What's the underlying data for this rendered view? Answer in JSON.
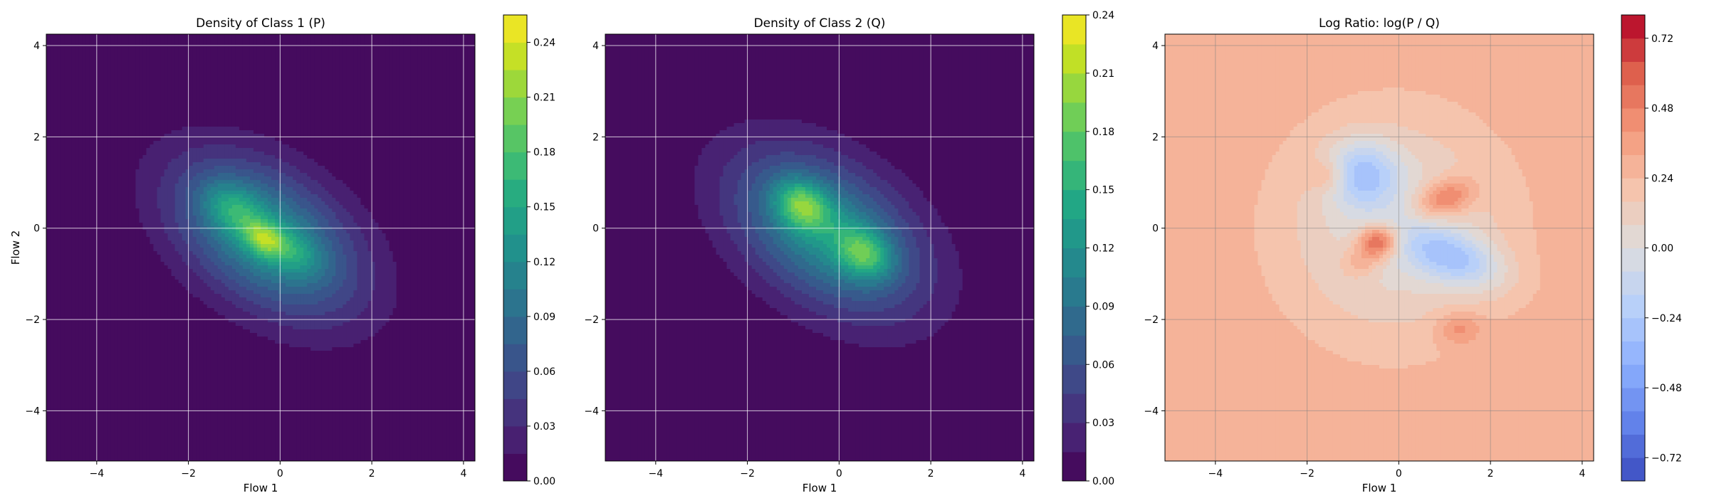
{
  "chart_data": [
    {
      "type": "heatmap",
      "title": "Density of Class 1 (P)",
      "xlabel": "Flow 1",
      "ylabel": "Flow 2",
      "xlim": [
        -5.1,
        4.25
      ],
      "ylim": [
        -5.1,
        4.25
      ],
      "xticks": [
        "−4",
        "−2",
        "0",
        "2",
        "4"
      ],
      "yticks": [
        "−4",
        "−2",
        "0",
        "2",
        "4"
      ],
      "grid": true,
      "colormap": "viridis",
      "colorbar": {
        "min": 0,
        "max": 0.255,
        "levels": 17,
        "ticks": [
          "0.00",
          "0.03",
          "0.06",
          "0.09",
          "0.12",
          "0.15",
          "0.18",
          "0.21",
          "0.24"
        ],
        "tick_values": [
          0,
          0.03,
          0.06,
          0.09,
          0.12,
          0.15,
          0.18,
          0.21,
          0.24
        ]
      },
      "blobs": [
        {
          "x": -0.3,
          "y": -0.2,
          "sx": 1.55,
          "sy": 0.95,
          "rot": -35,
          "peak": 0.13
        },
        {
          "x": -0.35,
          "y": -0.25,
          "sx": 0.35,
          "sy": 0.25,
          "rot": -35,
          "peak": 0.09
        },
        {
          "x": -1.05,
          "y": 0.45,
          "sx": 0.5,
          "sy": 0.35,
          "rot": -35,
          "peak": 0.06
        },
        {
          "x": 0.35,
          "y": -0.55,
          "sx": 0.45,
          "sy": 0.3,
          "rot": -35,
          "peak": 0.04
        }
      ]
    },
    {
      "type": "heatmap",
      "title": "Density of Class 2 (Q)",
      "xlabel": "Flow 1",
      "ylabel": "",
      "xlim": [
        -5.1,
        4.25
      ],
      "ylim": [
        -5.1,
        4.25
      ],
      "xticks": [
        "−4",
        "−2",
        "0",
        "2",
        "4"
      ],
      "yticks": [
        "−4",
        "−2",
        "0",
        "2",
        "4"
      ],
      "grid": true,
      "colormap": "viridis",
      "colorbar": {
        "min": 0,
        "max": 0.24,
        "levels": 16,
        "ticks": [
          "0.00",
          "0.03",
          "0.06",
          "0.09",
          "0.12",
          "0.15",
          "0.18",
          "0.21",
          "0.24"
        ],
        "tick_values": [
          0,
          0.03,
          0.06,
          0.09,
          0.12,
          0.15,
          0.18,
          0.21,
          0.24
        ]
      },
      "blobs": [
        {
          "x": -0.25,
          "y": -0.1,
          "sx": 1.6,
          "sy": 1.0,
          "rot": -35,
          "peak": 0.12
        },
        {
          "x": -0.8,
          "y": 0.5,
          "sx": 0.45,
          "sy": 0.35,
          "rot": -35,
          "peak": 0.1
        },
        {
          "x": 0.55,
          "y": -0.55,
          "sx": 0.45,
          "sy": 0.35,
          "rot": -35,
          "peak": 0.09
        }
      ]
    },
    {
      "type": "heatmap",
      "title": "Log Ratio: log(P / Q)",
      "xlabel": "Flow 1",
      "ylabel": "",
      "xlim": [
        -5.1,
        4.25
      ],
      "ylim": [
        -5.1,
        4.25
      ],
      "xticks": [
        "−4",
        "−2",
        "0",
        "2",
        "4"
      ],
      "yticks": [
        "−4",
        "−2",
        "0",
        "2",
        "4"
      ],
      "grid": true,
      "colormap": "coolwarm",
      "colorbar": {
        "min": -0.8,
        "max": 0.8,
        "levels": 20,
        "ticks": [
          "−0.72",
          "−0.48",
          "−0.24",
          "0.00",
          "0.24",
          "0.48",
          "0.72"
        ],
        "tick_values": [
          -0.72,
          -0.48,
          -0.24,
          0,
          0.24,
          0.48,
          0.72
        ]
      },
      "background": 0.3,
      "blobs": [
        {
          "x": -0.1,
          "y": 0.0,
          "sx": 1.7,
          "sy": 1.7,
          "rot": 0,
          "peak": -0.3
        },
        {
          "x": -0.8,
          "y": 1.2,
          "sx": 0.55,
          "sy": 0.5,
          "rot": 0,
          "peak": -0.4
        },
        {
          "x": 1.2,
          "y": -0.65,
          "sx": 0.8,
          "sy": 0.4,
          "rot": -20,
          "peak": -0.4
        },
        {
          "x": 1.0,
          "y": 0.65,
          "sx": 0.45,
          "sy": 0.28,
          "rot": 20,
          "peak": 0.4
        },
        {
          "x": -0.45,
          "y": -0.3,
          "sx": 0.3,
          "sy": 0.25,
          "rot": 0,
          "peak": 0.55
        },
        {
          "x": -1.55,
          "y": 1.15,
          "sx": 0.3,
          "sy": 0.25,
          "rot": 0,
          "peak": 0.2
        },
        {
          "x": -0.85,
          "y": -0.75,
          "sx": 0.3,
          "sy": 0.25,
          "rot": 0,
          "peak": 0.2
        },
        {
          "x": 1.3,
          "y": -2.2,
          "sx": 0.35,
          "sy": 0.25,
          "rot": 0,
          "peak": 0.2
        }
      ]
    }
  ]
}
